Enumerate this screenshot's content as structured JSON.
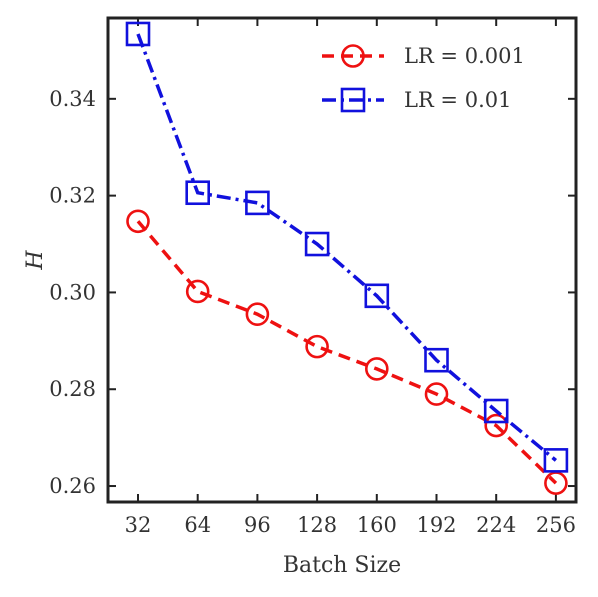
{
  "chart_data": {
    "type": "line",
    "xlabel": "Batch Size",
    "ylabel": "H",
    "x": [
      32,
      64,
      96,
      128,
      160,
      192,
      224,
      256
    ],
    "x_ticks": [
      "32",
      "64",
      "96",
      "128",
      "160",
      "192",
      "224",
      "256"
    ],
    "y_ticks": [
      "0.26",
      "0.28",
      "0.30",
      "0.32",
      "0.34"
    ],
    "y_tick_values": [
      0.26,
      0.28,
      0.3,
      0.32,
      0.34
    ],
    "ylim": [
      0.2567,
      0.3567
    ],
    "grid": false,
    "legend_position": "top-right",
    "series": [
      {
        "name": "LR = 0.001",
        "color": "#ee1111",
        "marker": "circle",
        "linestyle": "dashed",
        "values": [
          0.3147,
          0.3002,
          0.2955,
          0.2888,
          0.2842,
          0.279,
          0.2725,
          0.2606
        ]
      },
      {
        "name": "LR = 0.01",
        "color": "#1111dd",
        "marker": "square",
        "linestyle": "dashdot",
        "values": [
          0.3534,
          0.3206,
          0.3185,
          0.31,
          0.2993,
          0.286,
          0.2755,
          0.2653
        ]
      }
    ]
  }
}
